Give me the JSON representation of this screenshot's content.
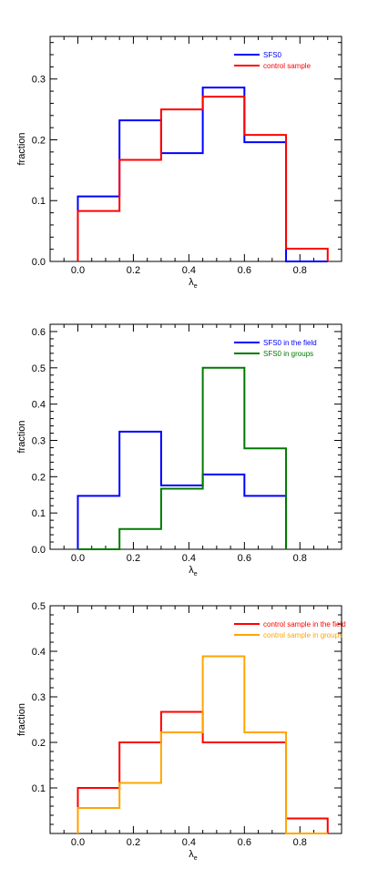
{
  "chart_data": [
    {
      "type": "histogram",
      "xlabel": "λ",
      "xlabel_subscript": "e",
      "ylabel": "fraction",
      "xlim": [
        -0.1,
        0.95
      ],
      "ylim": [
        0.0,
        0.37
      ],
      "xticks": [
        0.0,
        0.2,
        0.4,
        0.6,
        0.8
      ],
      "xtick_labels": [
        "0.0",
        "0.2",
        "0.4",
        "0.6",
        "0.8"
      ],
      "yticks": [
        0.0,
        0.1,
        0.2,
        0.3
      ],
      "ytick_labels": [
        "0.0",
        "0.1",
        "0.2",
        "0.3"
      ],
      "legend_position": "top-right",
      "bin_edges": [
        0.0,
        0.15,
        0.3,
        0.45,
        0.6,
        0.75,
        0.9
      ],
      "series": [
        {
          "name": "SFS0",
          "color": "#0000ff",
          "values": [
            0.107,
            0.232,
            0.178,
            0.286,
            0.196,
            0.0
          ]
        },
        {
          "name": "control sample",
          "color": "#ff0000",
          "values": [
            0.083,
            0.167,
            0.25,
            0.271,
            0.208,
            0.021
          ]
        }
      ]
    },
    {
      "type": "histogram",
      "xlabel": "λ",
      "xlabel_subscript": "e",
      "ylabel": "fraction",
      "xlim": [
        -0.1,
        0.95
      ],
      "ylim": [
        0.0,
        0.62
      ],
      "xticks": [
        0.0,
        0.2,
        0.4,
        0.6,
        0.8
      ],
      "xtick_labels": [
        "0.0",
        "0.2",
        "0.4",
        "0.6",
        "0.8"
      ],
      "yticks": [
        0.0,
        0.1,
        0.2,
        0.3,
        0.4,
        0.5,
        0.6
      ],
      "ytick_labels": [
        "0.0",
        "0.1",
        "0.2",
        "0.3",
        "0.4",
        "0.5",
        "0.6"
      ],
      "legend_position": "top-right",
      "bin_edges": [
        0.0,
        0.15,
        0.3,
        0.45,
        0.6,
        0.75
      ],
      "series": [
        {
          "name": "SFS0 in the field",
          "color": "#0000ff",
          "values": [
            0.147,
            0.324,
            0.176,
            0.206,
            0.147
          ]
        },
        {
          "name": "SFS0 in groups",
          "color": "#007a00",
          "values": [
            0.0,
            0.056,
            0.167,
            0.5,
            0.278
          ]
        }
      ]
    },
    {
      "type": "histogram",
      "xlabel": "λ",
      "xlabel_subscript": "e",
      "ylabel": "fraction",
      "xlim": [
        -0.1,
        0.95
      ],
      "ylim": [
        0.0,
        0.5
      ],
      "xticks": [
        0.0,
        0.2,
        0.4,
        0.6,
        0.8
      ],
      "xtick_labels": [
        "0.0",
        "0.2",
        "0.4",
        "0.6",
        "0.8"
      ],
      "yticks": [
        0.1,
        0.2,
        0.3,
        0.4,
        0.5
      ],
      "ytick_labels": [
        "0.1",
        "0.2",
        "0.3",
        "0.4",
        "0.5"
      ],
      "legend_position": "top-right",
      "bin_edges": [
        0.0,
        0.15,
        0.3,
        0.45,
        0.6,
        0.75,
        0.9
      ],
      "series": [
        {
          "name": "control sample in the field",
          "color": "#ff0000",
          "values": [
            0.1,
            0.2,
            0.267,
            0.2,
            0.2,
            0.033
          ]
        },
        {
          "name": "control sample in groups",
          "color": "#ffa500",
          "values": [
            0.056,
            0.111,
            0.222,
            0.389,
            0.222,
            0.0
          ]
        }
      ]
    }
  ]
}
